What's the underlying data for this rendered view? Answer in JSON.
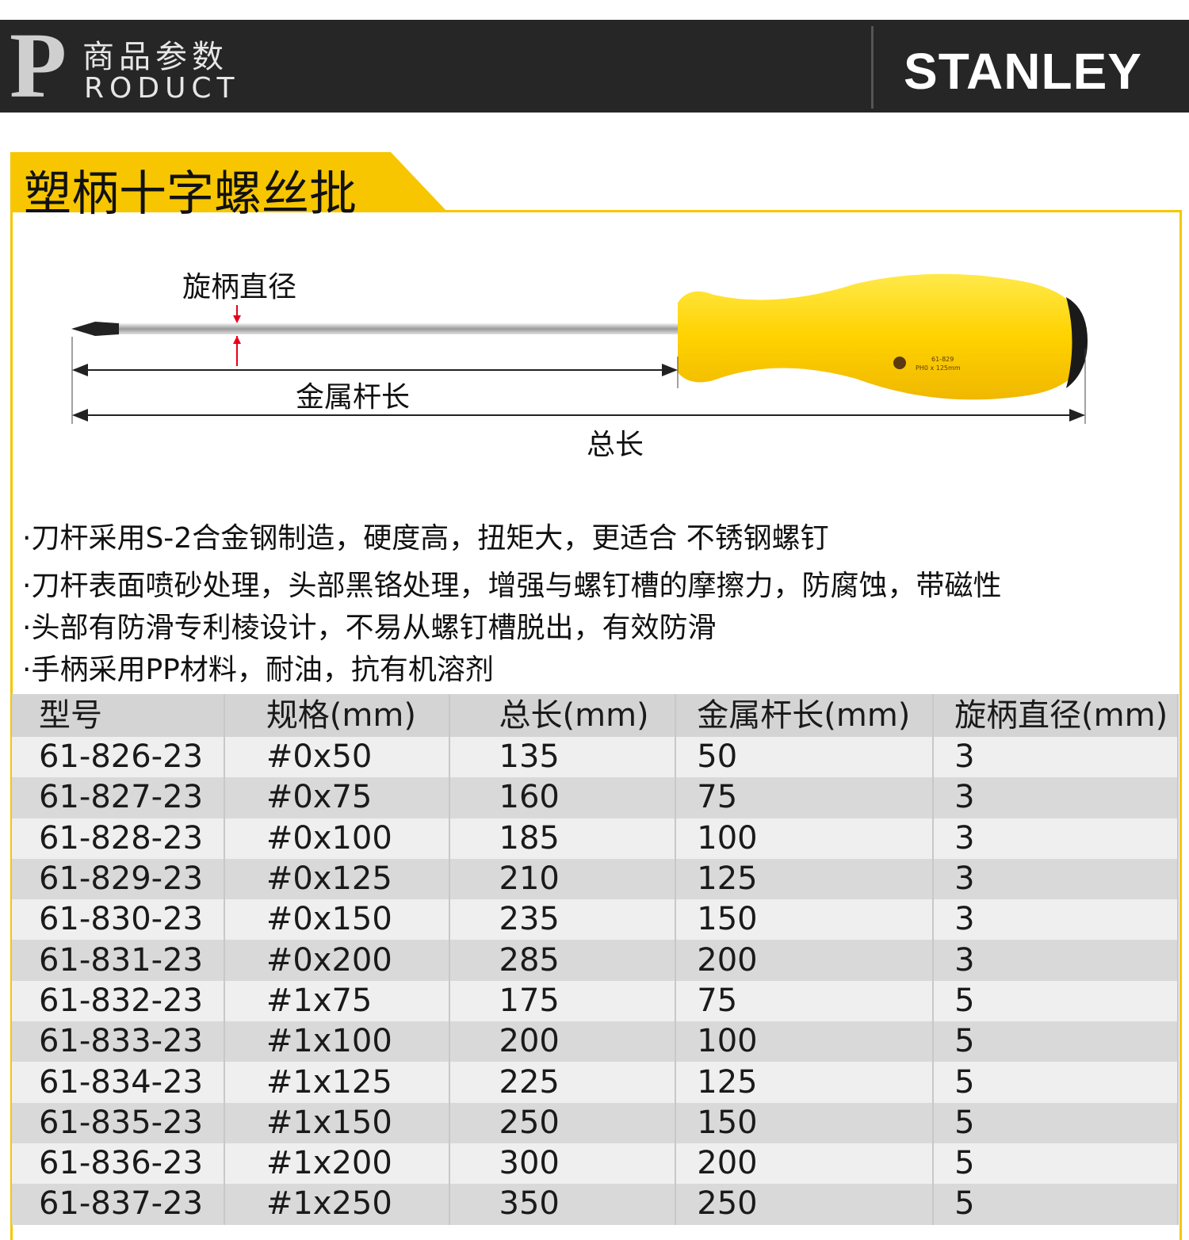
{
  "header": {
    "p_letter": "P",
    "title_cn": "商品参数",
    "title_en": "RODUCT",
    "brand": "STANLEY"
  },
  "section_title": "塑柄十字螺丝批",
  "diagram": {
    "handle_diameter": "旋柄直径",
    "shaft_length": "金属杆长",
    "total_length": "总长",
    "handle_print": "61-829 PH0 x 125mm",
    "colors": {
      "accent": "#f7c600",
      "handle": "#ffd800",
      "arrow": "#e8001c"
    }
  },
  "features": [
    "·刀杆采用S-2合金钢制造，硬度高，扭矩大，更适合 不锈钢螺钉",
    "·刀杆表面喷砂处理，头部黑铬处理，增强与螺钉槽的摩擦力，防腐蚀，带磁性",
    "·头部有防滑专利棱设计，不易从螺钉槽脱出，有效防滑",
    "·手柄采用PP材料，耐油，抗有机溶剂"
  ],
  "table": {
    "headers": [
      "型号",
      "规格(mm)",
      "总长(mm)",
      "金属杆长(mm)",
      "旋柄直径(mm)"
    ],
    "rows": [
      [
        "61-826-23",
        "#0x50",
        "135",
        "50",
        "3"
      ],
      [
        "61-827-23",
        "#0x75",
        "160",
        "75",
        "3"
      ],
      [
        "61-828-23",
        "#0x100",
        "185",
        "100",
        "3"
      ],
      [
        "61-829-23",
        "#0x125",
        "210",
        "125",
        "3"
      ],
      [
        "61-830-23",
        "#0x150",
        "235",
        "150",
        "3"
      ],
      [
        "61-831-23",
        "#0x200",
        "285",
        "200",
        "3"
      ],
      [
        "61-832-23",
        "#1x75",
        "175",
        "75",
        "5"
      ],
      [
        "61-833-23",
        "#1x100",
        "200",
        "100",
        "5"
      ],
      [
        "61-834-23",
        "#1x125",
        "225",
        "125",
        "5"
      ],
      [
        "61-835-23",
        "#1x150",
        "250",
        "150",
        "5"
      ],
      [
        "61-836-23",
        "#1x200",
        "300",
        "200",
        "5"
      ],
      [
        "61-837-23",
        "#1x250",
        "350",
        "250",
        "5"
      ]
    ]
  }
}
